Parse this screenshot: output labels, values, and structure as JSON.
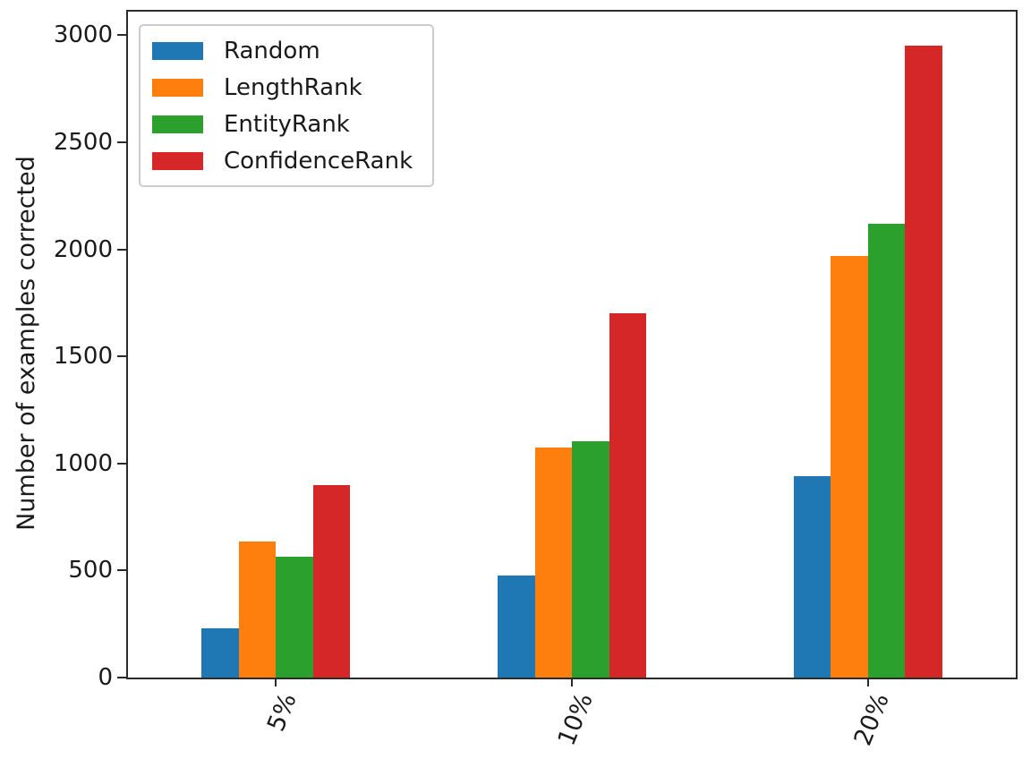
{
  "chart_data": {
    "type": "bar",
    "title": "",
    "xlabel": "",
    "ylabel": "Number of examples corrected",
    "categories": [
      "5%",
      "10%",
      "20%"
    ],
    "series": [
      {
        "name": "Random",
        "color": "#1f77b4",
        "values": [
          230,
          475,
          940
        ]
      },
      {
        "name": "LengthRank",
        "color": "#ff7f0e",
        "values": [
          635,
          1075,
          1970
        ]
      },
      {
        "name": "EntityRank",
        "color": "#2ca02c",
        "values": [
          565,
          1105,
          2120
        ]
      },
      {
        "name": "ConfidenceRank",
        "color": "#d62728",
        "values": [
          900,
          1700,
          2950
        ]
      }
    ],
    "yticks": [
      0,
      500,
      1000,
      1500,
      2000,
      2500,
      3000
    ],
    "ylim": [
      0,
      3110
    ],
    "xlim_note": "3 category slots, groups centered at slot midpoints",
    "grid": false,
    "legend_position": "upper left",
    "xtick_rotation_deg": 68,
    "spine_color": "#2b2b2b",
    "background_color": "#ffffff"
  }
}
